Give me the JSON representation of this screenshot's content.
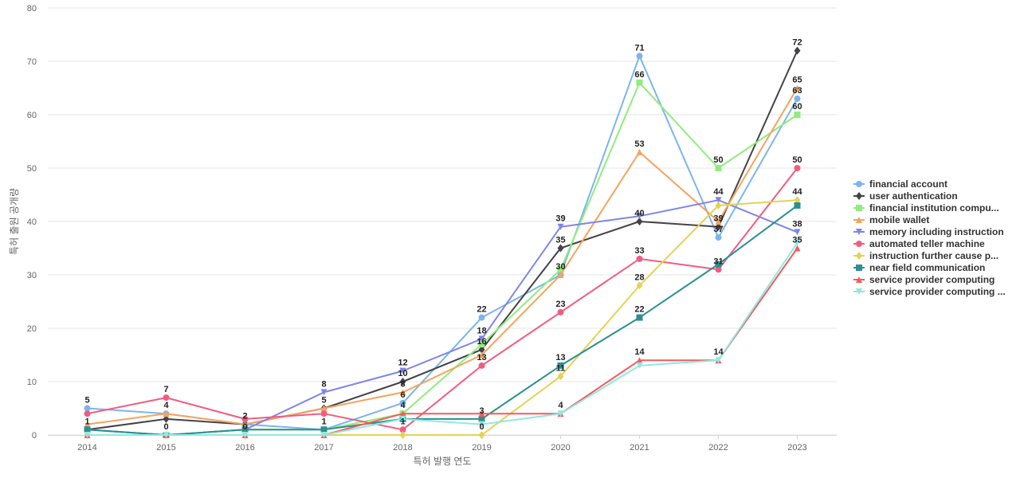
{
  "chart_data": {
    "type": "line",
    "title": "",
    "xlabel": "특허 발행 연도",
    "ylabel": "특허 출원 공개량",
    "ylim": [
      0,
      80
    ],
    "yticks": [
      0,
      10,
      20,
      30,
      40,
      50,
      60,
      70,
      80
    ],
    "grid": true,
    "legend_position": "right",
    "x": [
      "2014",
      "2015",
      "2016",
      "2017",
      "2018",
      "2019",
      "2020",
      "2021",
      "2022",
      "2023"
    ],
    "series": [
      {
        "name": "financial account",
        "color": "#7cb5ec",
        "marker": "circle",
        "values": [
          5,
          4,
          2,
          1,
          6,
          22,
          30,
          71,
          37,
          63
        ]
      },
      {
        "name": "user authentication",
        "color": "#434348",
        "marker": "diamond",
        "values": [
          1,
          3,
          2,
          5,
          10,
          16,
          35,
          40,
          39,
          72
        ]
      },
      {
        "name": "financial institution compu...",
        "color": "#90ed7d",
        "marker": "square",
        "values": [
          1,
          0,
          1,
          1,
          4,
          17,
          31,
          66,
          50,
          60
        ]
      },
      {
        "name": "mobile wallet",
        "color": "#f7a35c",
        "marker": "triangle",
        "values": [
          2,
          4,
          2,
          5,
          8,
          15,
          30,
          53,
          40,
          65
        ]
      },
      {
        "name": "memory including instruction",
        "color": "#8085e9",
        "marker": "triangle-down",
        "values": [
          1,
          0,
          1,
          8,
          12,
          18,
          39,
          41,
          44,
          38
        ]
      },
      {
        "name": "automated teller machine",
        "color": "#f15c80",
        "marker": "circle",
        "values": [
          4,
          7,
          3,
          4,
          1,
          13,
          23,
          33,
          31,
          50
        ]
      },
      {
        "name": "instruction further cause p...",
        "color": "#e4d354",
        "marker": "diamond",
        "values": [
          0,
          0,
          0,
          0,
          0,
          0,
          11,
          28,
          43,
          44
        ]
      },
      {
        "name": "near field communication",
        "color": "#2b908f",
        "marker": "square",
        "values": [
          1,
          0,
          1,
          1,
          3,
          3,
          13,
          22,
          32,
          43
        ]
      },
      {
        "name": "service provider computing",
        "color": "#f45b5b",
        "marker": "triangle",
        "values": [
          0,
          0,
          0,
          0,
          4,
          4,
          4,
          14,
          14,
          35
        ]
      },
      {
        "name": "service provider computing ...",
        "color": "#91e8e1",
        "marker": "triangle-down",
        "values": [
          0,
          0,
          0,
          0,
          3,
          2,
          4,
          13,
          14,
          36
        ]
      }
    ],
    "data_labels": [
      {
        "x": "2014",
        "value": "5"
      },
      {
        "x": "2014",
        "value": "1"
      },
      {
        "x": "2015",
        "value": "7"
      },
      {
        "x": "2015",
        "value": "4"
      },
      {
        "x": "2015",
        "value": "0"
      },
      {
        "x": "2016",
        "value": "2"
      },
      {
        "x": "2016",
        "value": "0"
      },
      {
        "x": "2017",
        "value": "8"
      },
      {
        "x": "2017",
        "value": "5"
      },
      {
        "x": "2017",
        "value": "1"
      },
      {
        "x": "2018",
        "value": "12"
      },
      {
        "x": "2018",
        "value": "10"
      },
      {
        "x": "2018",
        "value": "8"
      },
      {
        "x": "2018",
        "value": "6"
      },
      {
        "x": "2018",
        "value": "4"
      },
      {
        "x": "2018",
        "value": "1"
      },
      {
        "x": "2019",
        "value": "22"
      },
      {
        "x": "2019",
        "value": "18"
      },
      {
        "x": "2019",
        "value": "16"
      },
      {
        "x": "2019",
        "value": "13"
      },
      {
        "x": "2019",
        "value": "3"
      },
      {
        "x": "2019",
        "value": "0"
      },
      {
        "x": "2020",
        "value": "39"
      },
      {
        "x": "2020",
        "value": "35"
      },
      {
        "x": "2020",
        "value": "30"
      },
      {
        "x": "2020",
        "value": "23"
      },
      {
        "x": "2020",
        "value": "13"
      },
      {
        "x": "2020",
        "value": "11"
      },
      {
        "x": "2020",
        "value": "4"
      },
      {
        "x": "2021",
        "value": "71"
      },
      {
        "x": "2021",
        "value": "66"
      },
      {
        "x": "2021",
        "value": "53"
      },
      {
        "x": "2021",
        "value": "40"
      },
      {
        "x": "2021",
        "value": "33"
      },
      {
        "x": "2021",
        "value": "28"
      },
      {
        "x": "2021",
        "value": "22"
      },
      {
        "x": "2021",
        "value": "14"
      },
      {
        "x": "2022",
        "value": "50"
      },
      {
        "x": "2022",
        "value": "44"
      },
      {
        "x": "2022",
        "value": "39"
      },
      {
        "x": "2022",
        "value": "37"
      },
      {
        "x": "2022",
        "value": "31"
      },
      {
        "x": "2022",
        "value": "14"
      },
      {
        "x": "2023",
        "value": "72"
      },
      {
        "x": "2023",
        "value": "65"
      },
      {
        "x": "2023",
        "value": "63"
      },
      {
        "x": "2023",
        "value": "60"
      },
      {
        "x": "2023",
        "value": "50"
      },
      {
        "x": "2023",
        "value": "44"
      },
      {
        "x": "2023",
        "value": "38"
      },
      {
        "x": "2023",
        "value": "35"
      }
    ]
  }
}
